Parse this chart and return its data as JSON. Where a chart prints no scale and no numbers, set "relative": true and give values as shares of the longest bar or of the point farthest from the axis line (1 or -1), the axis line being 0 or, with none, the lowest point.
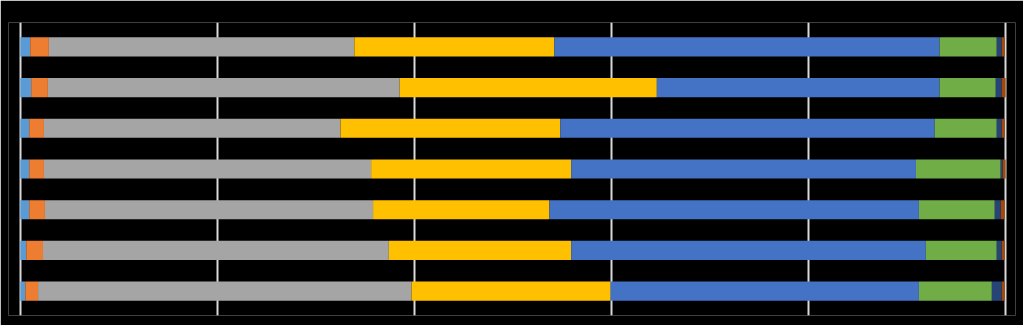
{
  "chart_data": {
    "type": "bar",
    "orientation": "horizontal",
    "stacked": true,
    "relative": true,
    "grid": "x",
    "categories": [
      null,
      null,
      null,
      null,
      null,
      null,
      null
    ],
    "series": [
      {
        "color": "#5b9bd5",
        "values": [
          0.01,
          0.011,
          0.009,
          0.009,
          0.009,
          0.006,
          0.005
        ]
      },
      {
        "color": "#ed7d31",
        "values": [
          0.019,
          0.017,
          0.015,
          0.015,
          0.016,
          0.017,
          0.013
        ]
      },
      {
        "color": "#a5a5a5",
        "values": [
          0.31,
          0.357,
          0.301,
          0.332,
          0.333,
          0.351,
          0.379
        ]
      },
      {
        "color": "#ffc000",
        "values": [
          0.203,
          0.261,
          0.223,
          0.203,
          0.179,
          0.185,
          0.202
        ]
      },
      {
        "color": "#4472c4",
        "values": [
          0.391,
          0.287,
          0.38,
          0.35,
          0.375,
          0.36,
          0.313
        ]
      },
      {
        "color": "#70ad47",
        "values": [
          0.058,
          0.057,
          0.063,
          0.086,
          0.077,
          0.072,
          0.074
        ]
      },
      {
        "color": "#264478",
        "values": [
          0.005,
          0.006,
          0.005,
          0.002,
          0.006,
          0.005,
          0.01
        ]
      },
      {
        "color": "#9e480e",
        "values": [
          0.003,
          0.004,
          0.003,
          0.003,
          0.004,
          0.003,
          0.003
        ]
      }
    ]
  }
}
